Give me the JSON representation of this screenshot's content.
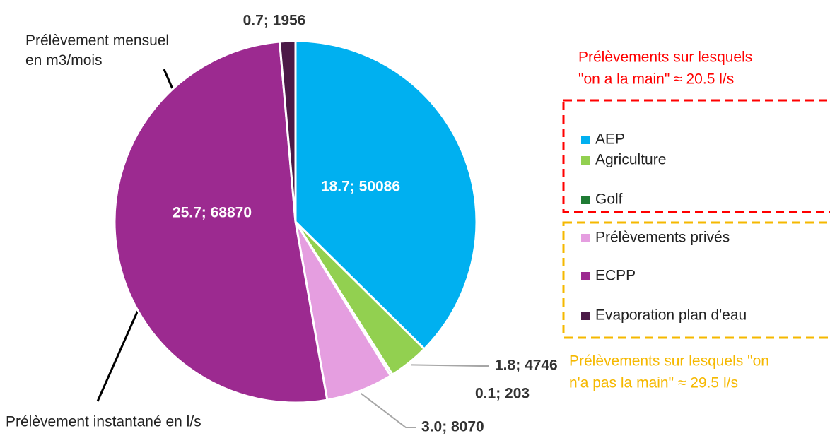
{
  "chart_data": {
    "type": "pie",
    "categories": [
      "AEP",
      "Agriculture",
      "Golf",
      "Prélèvements privés",
      "ECPP",
      "Evaporation plan d'eau"
    ],
    "colors": [
      "#00b0f0",
      "#92d050",
      "#1e7b34",
      "#e59ee0",
      "#9c2a90",
      "#4b1a47"
    ],
    "series": [
      {
        "name": "Prélèvement instantané en l/s",
        "values": [
          18.7,
          1.8,
          0.1,
          3.0,
          25.7,
          0.7
        ]
      },
      {
        "name": "Prélèvement mensuel en m3/mois",
        "values": [
          50086,
          4746,
          203,
          8070,
          68870,
          1956
        ]
      }
    ],
    "value_labels": [
      "18.7; 50086",
      "1.8; 4746",
      "0.1; 203",
      "3.0; 8070",
      "25.7; 68870",
      "0.7; 1956"
    ],
    "annotations": [
      {
        "text": [
          "Prélèvements sur lesquels",
          "\"on a la main\" ≈ 20.5 l/s"
        ],
        "color": "#ff0000"
      },
      {
        "text": [
          "Prélèvements sur lesquels \"on",
          "n'a pas la main\" ≈ 29.5 l/s"
        ],
        "color": "#f5b800"
      }
    ]
  }
}
